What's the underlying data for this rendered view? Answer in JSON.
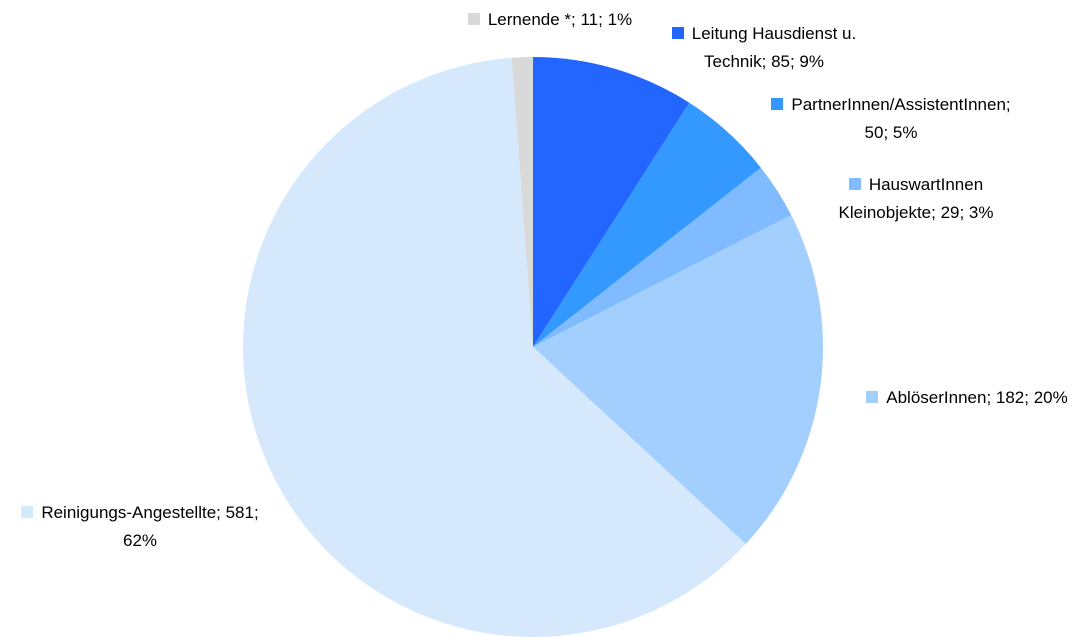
{
  "chart_data": {
    "type": "pie",
    "values": [
      85,
      50,
      29,
      182,
      581,
      11
    ],
    "value_labels": [
      "Leitung Hausdienst u. Technik; 85; 9%",
      "PartnerInnen/AssistentInnen; 50; 5%",
      "HauswartInnen Kleinobjekte; 29; 3%",
      "AblöserInnen; 182; 20%",
      "Reinigungs-Angestellte; 581; 62%",
      "Lernende *; 11; 1%"
    ],
    "colors": [
      "#2266ff",
      "#3399ff",
      "#80bbff",
      "#a3cfff",
      "#d6e9fc",
      "#d9d9d9"
    ]
  }
}
